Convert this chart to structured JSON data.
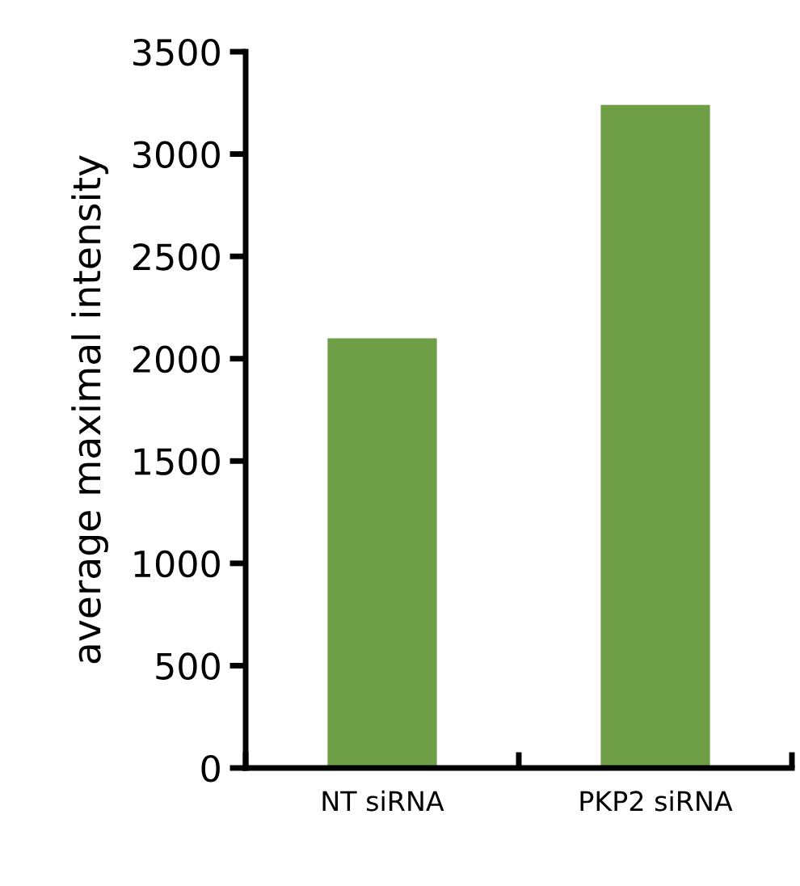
{
  "chart_data": {
    "type": "bar",
    "ylabel": "average maximal intensity",
    "categories": [
      "NT siRNA",
      "PKP2 siRNA"
    ],
    "values": [
      2100,
      3240
    ],
    "color": "#6e9e45",
    "ylim": [
      0,
      3500
    ],
    "yticks": [
      0,
      500,
      1000,
      1500,
      2000,
      2500,
      3000,
      3500
    ],
    "grid": false,
    "legend": false
  }
}
